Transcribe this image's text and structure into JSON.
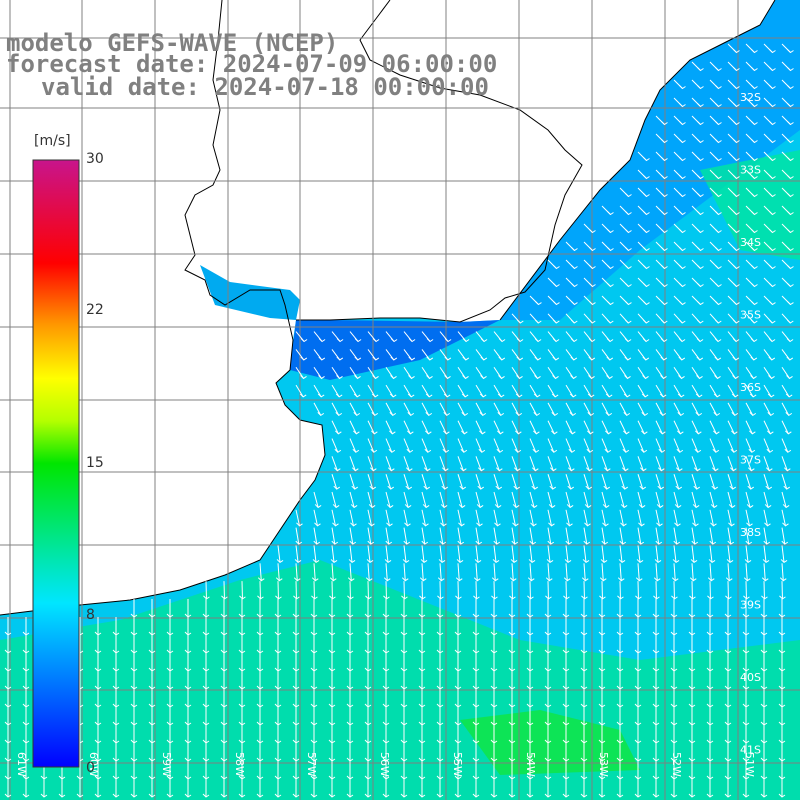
{
  "title": {
    "model": "modelo GEFS-WAVE (NCEP)",
    "forecast": "forecast date: 2024-07-09 06:00:00",
    "valid": "valid date: 2024-07-18 00:00:00"
  },
  "colorbar": {
    "unit": "[m/s]",
    "ticks": [
      "30",
      "22",
      "15",
      "8",
      "0"
    ]
  },
  "grid": {
    "lat_labels": [
      "32S",
      "33S",
      "34S",
      "35S",
      "36S",
      "37S",
      "38S",
      "39S",
      "40S",
      "41S"
    ],
    "lon_labels": [
      "61W",
      "60W",
      "59W",
      "58W",
      "57W",
      "56W",
      "55W",
      "54W",
      "53W",
      "52W",
      "51W"
    ]
  },
  "colors": {
    "land": "#ffffff",
    "coastline": "#000000",
    "grid": "#808080",
    "arrows": "#ffffff",
    "title": "#808080"
  }
}
